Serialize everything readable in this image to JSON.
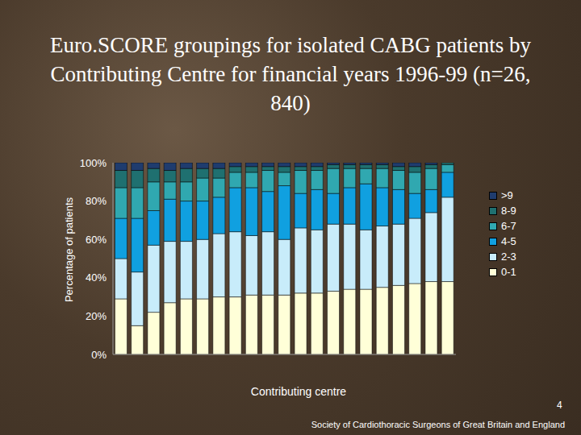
{
  "chart_data": {
    "type": "bar",
    "title": "Euro.SCORE groupings for isolated CABG patients by Contributing Centre for financial years 1996-99 (n=26, 840)",
    "x_label": "Contributing centre",
    "y_label": "Percentage of patients",
    "page_number": "4",
    "source": "Society of Cardiothoracic Surgeons of Great Britain and England",
    "stacked": true,
    "legend": "right",
    "grid": false,
    "categories": [
      null,
      null,
      null,
      null,
      null,
      null,
      null,
      null,
      null,
      null,
      null,
      null,
      null,
      null,
      null,
      null,
      null,
      null,
      null,
      null,
      null
    ],
    "ylim": [
      0,
      100
    ],
    "yticks": [
      {
        "value": 0,
        "label": "0%"
      },
      {
        "value": 20,
        "label": "20%"
      },
      {
        "value": 40,
        "label": "40%"
      },
      {
        "value": 60,
        "label": "60%"
      },
      {
        "value": 80,
        "label": "80%"
      },
      {
        "value": 100,
        "label": "100%"
      }
    ],
    "series": [
      {
        "name": "0-1",
        "color": "#ffffd8",
        "values": [
          29,
          15,
          22,
          27,
          29,
          29,
          30,
          30,
          31,
          31,
          31,
          32,
          32,
          33,
          34,
          34,
          35,
          36,
          37,
          38,
          38
        ]
      },
      {
        "name": "2-3",
        "color": "#c8ecfa",
        "values": [
          21,
          28,
          35,
          32,
          30,
          31,
          33,
          34,
          31,
          33,
          29,
          34,
          33,
          35,
          34,
          31,
          32,
          32,
          34,
          36,
          44
        ]
      },
      {
        "name": "4-5",
        "color": "#10a0e0",
        "values": [
          21,
          28,
          18,
          22,
          21,
          20,
          19,
          23,
          25,
          21,
          28,
          18,
          21,
          16,
          19,
          24,
          20,
          18,
          13,
          12,
          13
        ]
      },
      {
        "name": "6-7",
        "color": "#30a8b0",
        "values": [
          16,
          16,
          15,
          9,
          10,
          12,
          10,
          8,
          8,
          11,
          7,
          12,
          10,
          13,
          10,
          8,
          10,
          10,
          11,
          11,
          4
        ]
      },
      {
        "name": "8-9",
        "color": "#1f7070",
        "values": [
          9,
          9,
          7,
          6,
          7,
          5,
          5,
          3,
          3,
          2,
          3,
          2,
          2,
          2,
          2,
          2,
          2,
          2,
          3,
          2,
          1
        ]
      },
      {
        "name": ">9",
        "color": "#1f3c6e",
        "values": [
          4,
          4,
          3,
          4,
          3,
          3,
          3,
          2,
          2,
          2,
          2,
          2,
          2,
          1,
          1,
          1,
          1,
          2,
          2,
          1,
          0
        ]
      }
    ]
  }
}
